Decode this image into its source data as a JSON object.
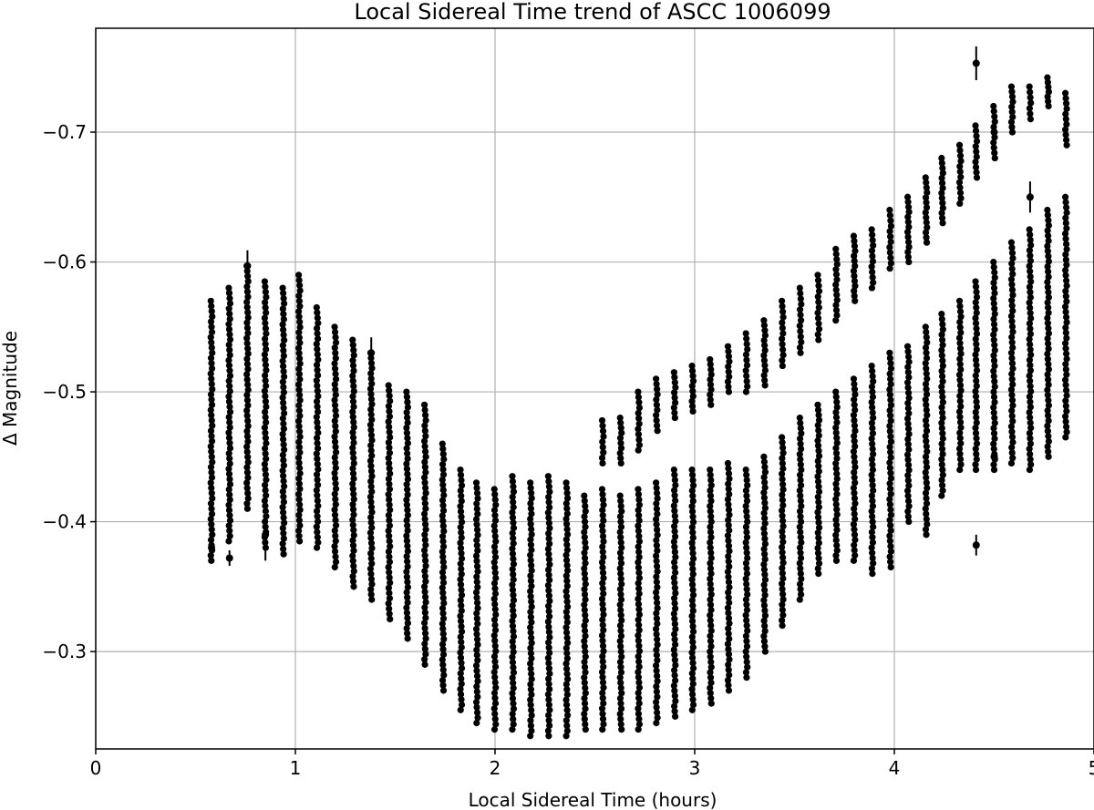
{
  "chart_data": {
    "type": "scatter",
    "title": "Local Sidereal Time trend of ASCC 1006099",
    "xlabel": "Local Sidereal Time (hours)",
    "ylabel": "Δ Magnitude",
    "xlim": [
      0,
      5
    ],
    "ylim": [
      -0.78,
      -0.225
    ],
    "y_inverted": true,
    "grid": true,
    "legend": "none",
    "marker_color": "#000000",
    "x_ticks": [
      0,
      1,
      2,
      3,
      4,
      5
    ],
    "x_tick_labels": [
      "0",
      "1",
      "2",
      "3",
      "4",
      "5"
    ],
    "y_ticks": [
      -0.7,
      -0.6,
      -0.5,
      -0.4,
      -0.3
    ],
    "y_tick_labels": [
      "−0.7",
      "−0.6",
      "−0.5",
      "−0.4",
      "−0.3"
    ],
    "error_bars": [
      {
        "x": 0.76,
        "y": -0.597,
        "err": 0.012
      },
      {
        "x": 0.58,
        "y": -0.38,
        "err": 0.012
      },
      {
        "x": 0.67,
        "y": -0.372,
        "err": 0.006
      },
      {
        "x": 0.85,
        "y": -0.39,
        "err": 0.02
      },
      {
        "x": 1.38,
        "y": -0.53,
        "err": 0.012
      },
      {
        "x": 4.41,
        "y": -0.753,
        "err": 0.013
      },
      {
        "x": 4.41,
        "y": -0.382,
        "err": 0.008
      },
      {
        "x": 4.5,
        "y": -0.7,
        "err": 0.02
      },
      {
        "x": 4.5,
        "y": -0.45,
        "err": 0.01
      },
      {
        "x": 4.68,
        "y": -0.65,
        "err": 0.012
      }
    ],
    "columns": [
      {
        "x": 0.58,
        "lower_min": -0.37,
        "lower_max": -0.57,
        "upper_min": null,
        "upper_max": null
      },
      {
        "x": 0.67,
        "lower_min": -0.385,
        "lower_max": -0.58,
        "upper_min": null,
        "upper_max": null
      },
      {
        "x": 0.76,
        "lower_min": -0.41,
        "lower_max": -0.597,
        "upper_min": null,
        "upper_max": null
      },
      {
        "x": 0.85,
        "lower_min": -0.38,
        "lower_max": -0.585,
        "upper_min": null,
        "upper_max": null
      },
      {
        "x": 0.94,
        "lower_min": -0.375,
        "lower_max": -0.58,
        "upper_min": null,
        "upper_max": null
      },
      {
        "x": 1.02,
        "lower_min": -0.385,
        "lower_max": -0.59,
        "upper_min": null,
        "upper_max": null
      },
      {
        "x": 1.11,
        "lower_min": -0.38,
        "lower_max": -0.565,
        "upper_min": null,
        "upper_max": null
      },
      {
        "x": 1.2,
        "lower_min": -0.365,
        "lower_max": -0.55,
        "upper_min": null,
        "upper_max": null
      },
      {
        "x": 1.29,
        "lower_min": -0.35,
        "lower_max": -0.54,
        "upper_min": null,
        "upper_max": null
      },
      {
        "x": 1.38,
        "lower_min": -0.34,
        "lower_max": -0.53,
        "upper_min": null,
        "upper_max": null
      },
      {
        "x": 1.47,
        "lower_min": -0.325,
        "lower_max": -0.505,
        "upper_min": null,
        "upper_max": null
      },
      {
        "x": 1.56,
        "lower_min": -0.31,
        "lower_max": -0.5,
        "upper_min": null,
        "upper_max": null
      },
      {
        "x": 1.65,
        "lower_min": -0.29,
        "lower_max": -0.49,
        "upper_min": null,
        "upper_max": null
      },
      {
        "x": 1.74,
        "lower_min": -0.27,
        "lower_max": -0.46,
        "upper_min": null,
        "upper_max": null
      },
      {
        "x": 1.83,
        "lower_min": -0.255,
        "lower_max": -0.44,
        "upper_min": null,
        "upper_max": null
      },
      {
        "x": 1.91,
        "lower_min": -0.245,
        "lower_max": -0.43,
        "upper_min": null,
        "upper_max": null
      },
      {
        "x": 2.0,
        "lower_min": -0.24,
        "lower_max": -0.425,
        "upper_min": null,
        "upper_max": null
      },
      {
        "x": 2.09,
        "lower_min": -0.24,
        "lower_max": -0.435,
        "upper_min": null,
        "upper_max": null
      },
      {
        "x": 2.18,
        "lower_min": -0.235,
        "lower_max": -0.43,
        "upper_min": null,
        "upper_max": null
      },
      {
        "x": 2.27,
        "lower_min": -0.235,
        "lower_max": -0.435,
        "upper_min": null,
        "upper_max": null
      },
      {
        "x": 2.36,
        "lower_min": -0.235,
        "lower_max": -0.43,
        "upper_min": null,
        "upper_max": null
      },
      {
        "x": 2.45,
        "lower_min": -0.24,
        "lower_max": -0.42,
        "upper_min": null,
        "upper_max": null
      },
      {
        "x": 2.54,
        "lower_min": -0.24,
        "lower_max": -0.425,
        "upper_min": -0.445,
        "upper_max": -0.478
      },
      {
        "x": 2.63,
        "lower_min": -0.24,
        "lower_max": -0.42,
        "upper_min": -0.445,
        "upper_max": -0.48
      },
      {
        "x": 2.72,
        "lower_min": -0.24,
        "lower_max": -0.425,
        "upper_min": -0.455,
        "upper_max": -0.5
      },
      {
        "x": 2.81,
        "lower_min": -0.245,
        "lower_max": -0.43,
        "upper_min": -0.47,
        "upper_max": -0.51
      },
      {
        "x": 2.9,
        "lower_min": -0.25,
        "lower_max": -0.44,
        "upper_min": -0.48,
        "upper_max": -0.515
      },
      {
        "x": 2.99,
        "lower_min": -0.255,
        "lower_max": -0.44,
        "upper_min": -0.485,
        "upper_max": -0.52
      },
      {
        "x": 3.08,
        "lower_min": -0.26,
        "lower_max": -0.44,
        "upper_min": -0.49,
        "upper_max": -0.525
      },
      {
        "x": 3.17,
        "lower_min": -0.27,
        "lower_max": -0.445,
        "upper_min": -0.5,
        "upper_max": -0.535
      },
      {
        "x": 3.26,
        "lower_min": -0.28,
        "lower_max": -0.44,
        "upper_min": -0.5,
        "upper_max": -0.545
      },
      {
        "x": 3.35,
        "lower_min": -0.3,
        "lower_max": -0.45,
        "upper_min": -0.505,
        "upper_max": -0.555
      },
      {
        "x": 3.44,
        "lower_min": -0.32,
        "lower_max": -0.465,
        "upper_min": -0.52,
        "upper_max": -0.57
      },
      {
        "x": 3.53,
        "lower_min": -0.34,
        "lower_max": -0.48,
        "upper_min": -0.53,
        "upper_max": -0.58
      },
      {
        "x": 3.62,
        "lower_min": -0.36,
        "lower_max": -0.49,
        "upper_min": -0.54,
        "upper_max": -0.59
      },
      {
        "x": 3.71,
        "lower_min": -0.37,
        "lower_max": -0.5,
        "upper_min": -0.555,
        "upper_max": -0.61
      },
      {
        "x": 3.8,
        "lower_min": -0.37,
        "lower_max": -0.51,
        "upper_min": -0.57,
        "upper_max": -0.62
      },
      {
        "x": 3.89,
        "lower_min": -0.36,
        "lower_max": -0.52,
        "upper_min": -0.58,
        "upper_max": -0.625
      },
      {
        "x": 3.98,
        "lower_min": -0.365,
        "lower_max": -0.53,
        "upper_min": -0.595,
        "upper_max": -0.64
      },
      {
        "x": 4.07,
        "lower_min": -0.4,
        "lower_max": -0.535,
        "upper_min": -0.6,
        "upper_max": -0.65
      },
      {
        "x": 4.16,
        "lower_min": -0.39,
        "lower_max": -0.55,
        "upper_min": -0.615,
        "upper_max": -0.665
      },
      {
        "x": 4.24,
        "lower_min": -0.42,
        "lower_max": -0.56,
        "upper_min": -0.63,
        "upper_max": -0.68
      },
      {
        "x": 4.33,
        "lower_min": -0.44,
        "lower_max": -0.57,
        "upper_min": -0.645,
        "upper_max": -0.69
      },
      {
        "x": 4.41,
        "lower_min": -0.44,
        "lower_max": -0.585,
        "upper_min": -0.665,
        "upper_max": -0.705
      },
      {
        "x": 4.5,
        "lower_min": -0.44,
        "lower_max": -0.6,
        "upper_min": -0.68,
        "upper_max": -0.72
      },
      {
        "x": 4.59,
        "lower_min": -0.445,
        "lower_max": -0.615,
        "upper_min": -0.7,
        "upper_max": -0.735
      },
      {
        "x": 4.68,
        "lower_min": -0.44,
        "lower_max": -0.625,
        "upper_min": -0.71,
        "upper_max": -0.735
      },
      {
        "x": 4.77,
        "lower_min": -0.45,
        "lower_max": -0.64,
        "upper_min": -0.72,
        "upper_max": -0.742
      },
      {
        "x": 4.86,
        "lower_min": -0.465,
        "lower_max": -0.65,
        "upper_min": -0.69,
        "upper_max": -0.73
      }
    ]
  }
}
